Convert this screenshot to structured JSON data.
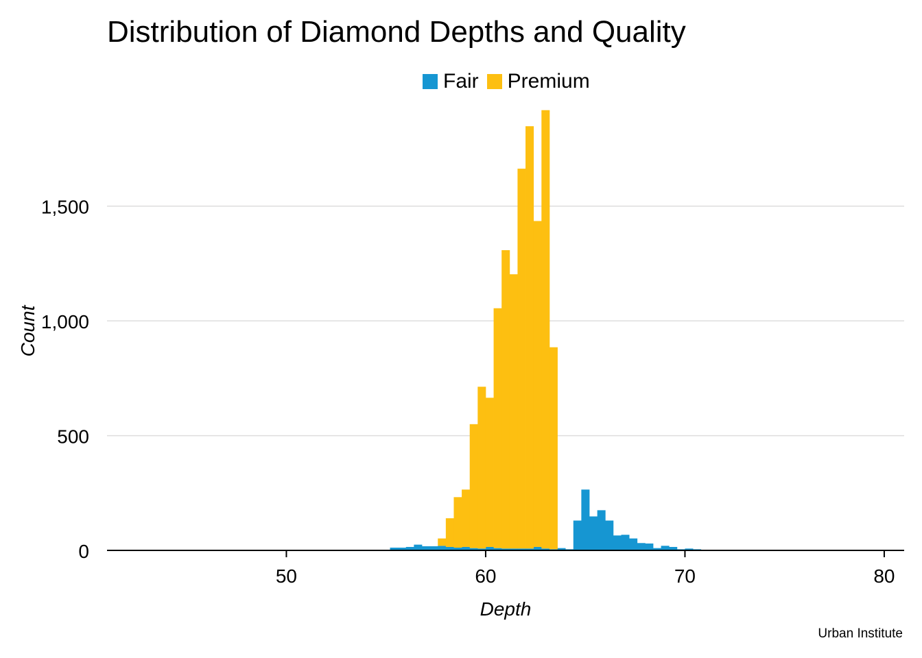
{
  "chart_data": {
    "type": "bar",
    "title": "Distribution of Diamond Depths and Quality",
    "xlabel": "Depth",
    "ylabel": "Count",
    "caption": "Urban Institute",
    "xlim": [
      41,
      81
    ],
    "ylim": [
      0,
      1950
    ],
    "x_ticks": [
      50,
      60,
      70,
      80
    ],
    "x_tick_labels": [
      "50",
      "60",
      "70",
      "80"
    ],
    "y_ticks": [
      0,
      500,
      1000,
      1500
    ],
    "y_tick_labels": [
      "0",
      "500",
      "1,000",
      "1,500"
    ],
    "grid": "horizontal",
    "legend_position": "top",
    "bin_width": 0.4,
    "stacked": true,
    "series": [
      {
        "name": "Fair",
        "color": "#1696d2",
        "bins": [
          {
            "x": 55.2,
            "value": 12
          },
          {
            "x": 55.6,
            "value": 12
          },
          {
            "x": 56.0,
            "value": 15
          },
          {
            "x": 56.4,
            "value": 25
          },
          {
            "x": 56.8,
            "value": 18
          },
          {
            "x": 57.2,
            "value": 18
          },
          {
            "x": 57.6,
            "value": 20
          },
          {
            "x": 58.0,
            "value": 15
          },
          {
            "x": 58.4,
            "value": 12
          },
          {
            "x": 58.8,
            "value": 15
          },
          {
            "x": 59.2,
            "value": 10
          },
          {
            "x": 59.6,
            "value": 8
          },
          {
            "x": 60.0,
            "value": 15
          },
          {
            "x": 60.4,
            "value": 10
          },
          {
            "x": 60.8,
            "value": 8
          },
          {
            "x": 61.2,
            "value": 8
          },
          {
            "x": 61.6,
            "value": 8
          },
          {
            "x": 62.0,
            "value": 8
          },
          {
            "x": 62.4,
            "value": 15
          },
          {
            "x": 62.8,
            "value": 8
          },
          {
            "x": 63.2,
            "value": 5
          },
          {
            "x": 63.6,
            "value": 10
          },
          {
            "x": 64.0,
            "value": 5
          },
          {
            "x": 64.4,
            "value": 130
          },
          {
            "x": 64.8,
            "value": 265
          },
          {
            "x": 65.2,
            "value": 148
          },
          {
            "x": 65.6,
            "value": 175
          },
          {
            "x": 66.0,
            "value": 130
          },
          {
            "x": 66.4,
            "value": 65
          },
          {
            "x": 66.8,
            "value": 68
          },
          {
            "x": 67.2,
            "value": 52
          },
          {
            "x": 67.6,
            "value": 32
          },
          {
            "x": 68.0,
            "value": 30
          },
          {
            "x": 68.4,
            "value": 10
          },
          {
            "x": 68.8,
            "value": 20
          },
          {
            "x": 69.2,
            "value": 15
          },
          {
            "x": 69.6,
            "value": 5
          },
          {
            "x": 70.0,
            "value": 8
          },
          {
            "x": 70.4,
            "value": 5
          },
          {
            "x": 70.8,
            "value": 3
          }
        ]
      },
      {
        "name": "Premium",
        "color": "#fdbf11",
        "bins": [
          {
            "x": 57.6,
            "value": 32
          },
          {
            "x": 58.0,
            "value": 125
          },
          {
            "x": 58.4,
            "value": 220
          },
          {
            "x": 58.8,
            "value": 250
          },
          {
            "x": 59.2,
            "value": 540
          },
          {
            "x": 59.6,
            "value": 705
          },
          {
            "x": 60.0,
            "value": 650
          },
          {
            "x": 60.4,
            "value": 1045
          },
          {
            "x": 60.8,
            "value": 1300
          },
          {
            "x": 61.2,
            "value": 1195
          },
          {
            "x": 61.6,
            "value": 1655
          },
          {
            "x": 62.0,
            "value": 1840
          },
          {
            "x": 62.4,
            "value": 1420
          },
          {
            "x": 62.8,
            "value": 1910
          },
          {
            "x": 63.2,
            "value": 880
          }
        ]
      }
    ]
  }
}
